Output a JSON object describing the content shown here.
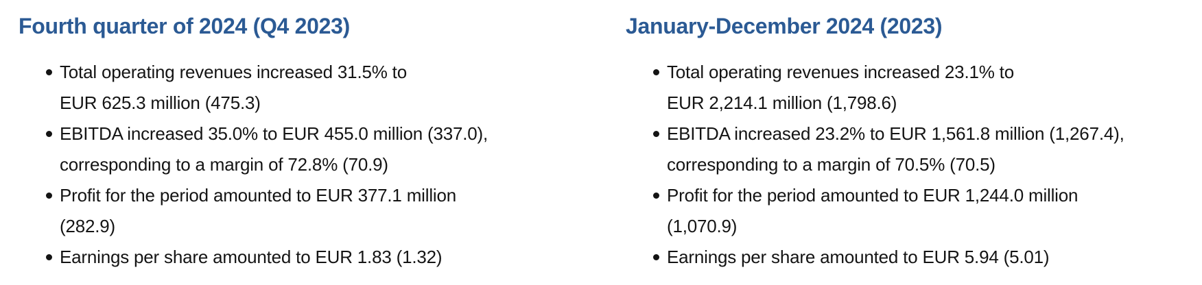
{
  "page": {
    "background_color": "#ffffff",
    "heading_color": "#2b5a94",
    "text_color": "#141414",
    "bullet_color": "#141414"
  },
  "columns": [
    {
      "heading": "Fourth quarter of 2024 (Q4 2023)",
      "bullets": [
        {
          "text": "Total operating revenues increased 31.5% to EUR 625.3 million (475.3)",
          "lines": [
            "Total operating revenues increased 31.5% to",
            "EUR 625.3 million (475.3)"
          ]
        },
        {
          "text": "EBITDA increased 35.0% to EUR 455.0 million (337.0), corresponding to a margin of 72.8% (70.9)",
          "lines": [
            "EBITDA increased 35.0% to EUR 455.0 million (337.0),",
            "corresponding to a margin of 72.8% (70.9)"
          ]
        },
        {
          "text": "Profit for the period amounted to EUR 377.1 million (282.9)",
          "lines": [
            "Profit for the period amounted to EUR 377.1 million",
            "(282.9)"
          ]
        },
        {
          "text": "Earnings per share amounted to EUR 1.83 (1.32)",
          "lines": [
            "Earnings per share amounted to EUR 1.83 (1.32)"
          ]
        }
      ]
    },
    {
      "heading": "January-December 2024 (2023)",
      "bullets": [
        {
          "text": "Total operating revenues increased 23.1% to EUR 2,214.1 million (1,798.6)",
          "lines": [
            "Total operating revenues increased 23.1% to",
            "EUR 2,214.1 million (1,798.6)"
          ]
        },
        {
          "text": "EBITDA increased 23.2% to EUR 1,561.8 million (1,267.4), corresponding to a margin of 70.5% (70.5)",
          "lines": [
            "EBITDA increased 23.2% to EUR 1,561.8 million (1,267.4),",
            "corresponding to a margin of 70.5% (70.5)"
          ]
        },
        {
          "text": "Profit for the period amounted to EUR 1,244.0 million (1,070.9)",
          "lines": [
            "Profit for the period amounted to EUR 1,244.0 million",
            "(1,070.9)"
          ]
        },
        {
          "text": "Earnings per share amounted to EUR 5.94 (5.01)",
          "lines": [
            "Earnings per share amounted to EUR 5.94 (5.01)"
          ]
        }
      ]
    }
  ]
}
